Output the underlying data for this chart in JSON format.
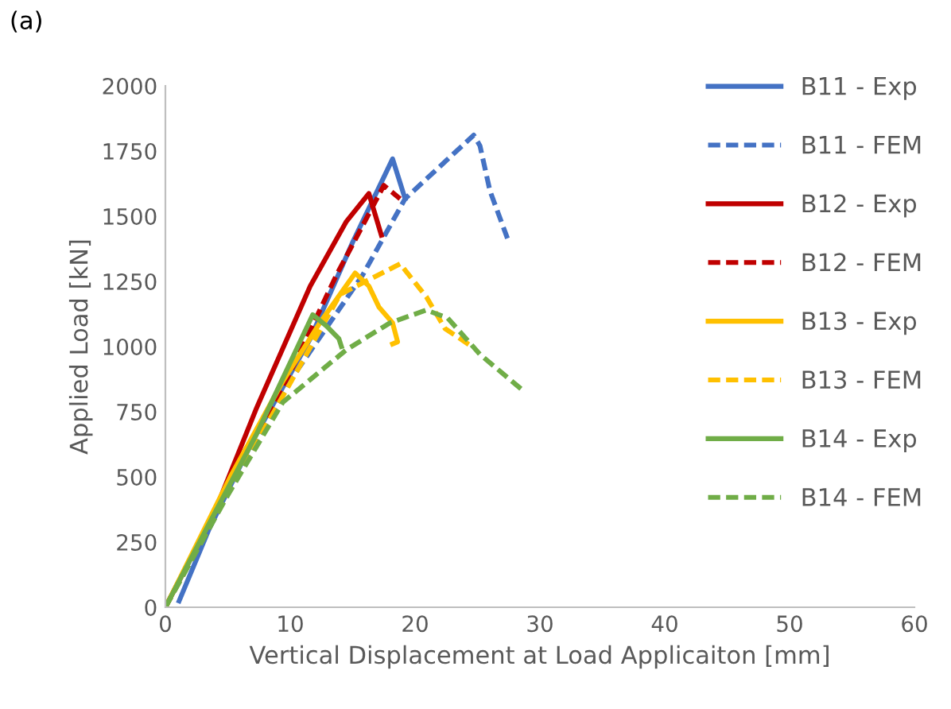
{
  "chart_data": {
    "type": "line",
    "xlabel": "Vertical Displacement at Load Applicaiton [mm]",
    "ylabel": "Applied Load [kN]",
    "annotations": [
      "(a)"
    ],
    "xlim": [
      0,
      60
    ],
    "xticks": [
      0,
      10,
      20,
      30,
      40,
      50,
      60
    ],
    "ylim": [
      0,
      2000
    ],
    "yticks": [
      0,
      250,
      500,
      750,
      1000,
      1250,
      1500,
      1750,
      2000
    ],
    "grid": false,
    "legend": "top right",
    "marker": "none",
    "series": [
      {
        "name": "B11 - Exp",
        "color": "#4472c4",
        "line_style": "solid",
        "x": [
          1.1,
          3.5,
          7.0,
          11.6,
          15.0,
          18.2,
          19.2
        ],
        "values": [
          24,
          300,
          640,
          1030,
          1400,
          1720,
          1567
        ]
      },
      {
        "name": "B11 - FEM",
        "color": "#4472c4",
        "line_style": "dashed",
        "x": [
          0,
          5.0,
          10.0,
          15.8,
          19.2,
          24.7,
          25.2,
          26.0,
          27.4
        ],
        "values": [
          0,
          440,
          870,
          1274,
          1567,
          1811,
          1770,
          1597,
          1415
        ]
      },
      {
        "name": "B12 - Exp",
        "color": "#c00000",
        "line_style": "solid",
        "x": [
          0,
          3.9,
          7.3,
          11.6,
          14.5,
          16.3,
          17.3
        ],
        "values": [
          0,
          360,
          764,
          1232,
          1480,
          1587,
          1427
        ]
      },
      {
        "name": "B12 - FEM",
        "color": "#c00000",
        "line_style": "dashed",
        "x": [
          0,
          5.0,
          10.0,
          13.7,
          17.5,
          18.8
        ],
        "values": [
          0,
          460,
          900,
          1274,
          1618,
          1567
        ]
      },
      {
        "name": "B13 - Exp",
        "color": "#ffc000",
        "line_style": "solid",
        "x": [
          0,
          5.2,
          9.4,
          12.5,
          15.2,
          16.3,
          17.1,
          18.2,
          18.6,
          18.2
        ],
        "values": [
          0,
          500,
          866,
          1100,
          1282,
          1232,
          1152,
          1091,
          1018,
          1010
        ]
      },
      {
        "name": "B13 - FEM",
        "color": "#ffc000",
        "line_style": "dashed",
        "x": [
          0,
          5.0,
          10.0,
          14.0,
          18.8,
          20.9,
          22.4,
          24.3
        ],
        "values": [
          0,
          440,
          860,
          1200,
          1317,
          1191,
          1069,
          1008
        ]
      },
      {
        "name": "B14 - Exp",
        "color": "#70ad47",
        "line_style": "solid",
        "x": [
          0,
          3.5,
          7.3,
          11.8,
          12.9,
          13.9,
          14.1
        ],
        "values": [
          0,
          320,
          664,
          1122,
          1079,
          1030,
          1000
        ]
      },
      {
        "name": "B14 - FEM",
        "color": "#70ad47",
        "line_style": "dashed",
        "x": [
          0,
          5.0,
          9.4,
          14.5,
          18.0,
          20.9,
          22.6,
          25.2,
          28.8
        ],
        "values": [
          0,
          430,
          786,
          988,
          1091,
          1140,
          1110,
          970,
          825
        ]
      }
    ]
  }
}
